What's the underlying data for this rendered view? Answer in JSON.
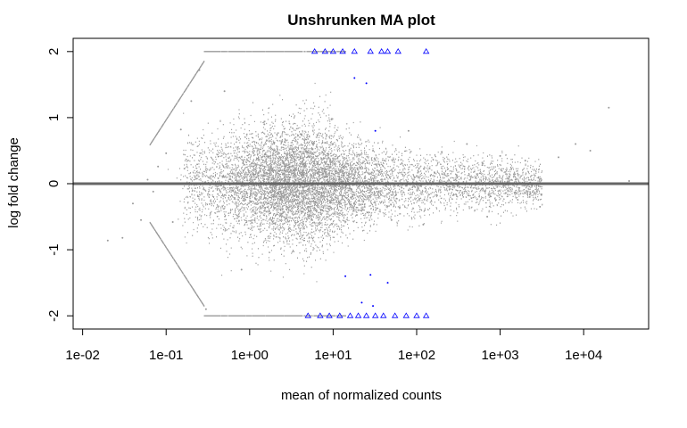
{
  "chart_data": {
    "type": "scatter",
    "title": "Unshrunken MA plot",
    "xlabel": "mean of normalized counts",
    "ylabel": "log fold change",
    "x_scale": "log10",
    "xlim": [
      0.0077,
      60000
    ],
    "ylim": [
      -2.2,
      2.2
    ],
    "x_ticks": [
      {
        "value": 0.01,
        "label": "1e-02"
      },
      {
        "value": 0.1,
        "label": "1e-01"
      },
      {
        "value": 1,
        "label": "1e+00"
      },
      {
        "value": 10,
        "label": "1e+01"
      },
      {
        "value": 100,
        "label": "1e+02"
      },
      {
        "value": 1000,
        "label": "1e+03"
      },
      {
        "value": 10000,
        "label": "1e+04"
      }
    ],
    "y_ticks": [
      {
        "value": -2,
        "label": "-2"
      },
      {
        "value": -1,
        "label": "-1"
      },
      {
        "value": 0,
        "label": "0"
      },
      {
        "value": 1,
        "label": "1"
      },
      {
        "value": 2,
        "label": "2"
      }
    ],
    "reference_line": {
      "y": 0,
      "color": "#666666"
    },
    "grid": false,
    "legend": "none",
    "colors": {
      "not_significant": "#999999",
      "significant": "#0000ff",
      "frame": "#000000"
    },
    "series": [
      {
        "key": "not_significant",
        "points": [
          [
            0.03,
            -0.82
          ],
          [
            0.02,
            -0.86
          ],
          [
            0.05,
            -0.55
          ],
          [
            0.04,
            -0.3
          ],
          [
            0.06,
            0.06
          ],
          [
            0.07,
            -0.12
          ],
          [
            0.08,
            0.26
          ],
          [
            0.1,
            0.46
          ],
          [
            0.12,
            -0.58
          ],
          [
            0.15,
            0.82
          ],
          [
            0.2,
            1.25
          ],
          [
            0.25,
            1.72
          ],
          [
            0.3,
            -1.9
          ],
          [
            0.5,
            1.4
          ],
          [
            0.8,
            -1.3
          ],
          [
            1.5,
            0.9
          ],
          [
            2.0,
            -0.6
          ],
          [
            3.0,
            0.45
          ],
          [
            5.0,
            -0.35
          ],
          [
            8.0,
            0.62
          ],
          [
            10,
            -0.25
          ],
          [
            15,
            0.3
          ],
          [
            20,
            -0.4
          ],
          [
            30,
            0.5
          ],
          [
            50,
            -0.55
          ],
          [
            80,
            0.8
          ],
          [
            120,
            -0.62
          ],
          [
            200,
            0.48
          ],
          [
            400,
            0.6
          ],
          [
            700,
            -0.5
          ],
          [
            1000,
            0.42
          ],
          [
            2000,
            0.35
          ],
          [
            3000,
            -0.35
          ],
          [
            5000,
            0.4
          ],
          [
            8000,
            0.6
          ],
          [
            12000,
            0.5
          ],
          [
            20000,
            1.15
          ],
          [
            35000,
            0.04
          ]
        ]
      },
      {
        "key": "significant",
        "points": [
          [
            6,
            2.0
          ],
          [
            8,
            2.0
          ],
          [
            10,
            2.0
          ],
          [
            13,
            2.0
          ],
          [
            18,
            2.0
          ],
          [
            28,
            2.0
          ],
          [
            38,
            2.0
          ],
          [
            45,
            2.0
          ],
          [
            60,
            2.0
          ],
          [
            130,
            2.0
          ],
          [
            18,
            1.6
          ],
          [
            25,
            1.52
          ],
          [
            32,
            0.8
          ],
          [
            14,
            -1.4
          ],
          [
            28,
            -1.38
          ],
          [
            45,
            -1.5
          ],
          [
            22,
            -1.8
          ],
          [
            30,
            -1.85
          ],
          [
            5,
            -2.0
          ],
          [
            7,
            -2.0
          ],
          [
            9,
            -2.0
          ],
          [
            12,
            -2.0
          ],
          [
            16,
            -2.0
          ],
          [
            20,
            -2.0
          ],
          [
            25,
            -2.0
          ],
          [
            32,
            -2.0
          ],
          [
            40,
            -2.0
          ],
          [
            55,
            -2.0
          ],
          [
            75,
            -2.0
          ],
          [
            100,
            -2.0
          ],
          [
            130,
            -2.0
          ]
        ]
      }
    ]
  }
}
